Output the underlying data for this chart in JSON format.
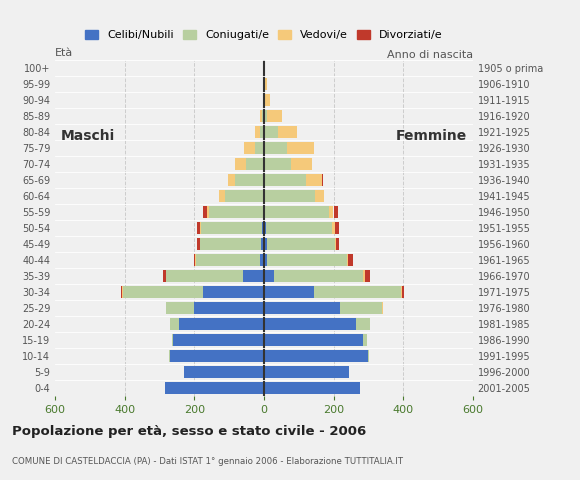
{
  "age_groups": [
    "0-4",
    "5-9",
    "10-14",
    "15-19",
    "20-24",
    "25-29",
    "30-34",
    "35-39",
    "40-44",
    "45-49",
    "50-54",
    "55-59",
    "60-64",
    "65-69",
    "70-74",
    "75-79",
    "80-84",
    "85-89",
    "90-94",
    "95-99",
    "100+"
  ],
  "birth_years": [
    "2001-2005",
    "1996-2000",
    "1991-1995",
    "1986-1990",
    "1981-1985",
    "1976-1980",
    "1971-1975",
    "1966-1970",
    "1961-1965",
    "1956-1960",
    "1951-1955",
    "1946-1950",
    "1941-1945",
    "1936-1940",
    "1931-1935",
    "1926-1930",
    "1921-1925",
    "1916-1920",
    "1911-1915",
    "1906-1910",
    "1905 o prima"
  ],
  "males_celibe": [
    285,
    230,
    270,
    260,
    245,
    200,
    175,
    60,
    10,
    8,
    5,
    3,
    3,
    2,
    2,
    2,
    0,
    0,
    0,
    0,
    0
  ],
  "males_coniugato": [
    0,
    0,
    2,
    5,
    25,
    80,
    230,
    220,
    185,
    175,
    175,
    155,
    110,
    80,
    50,
    25,
    10,
    5,
    2,
    0,
    0
  ],
  "males_vedovo": [
    0,
    0,
    0,
    0,
    0,
    0,
    2,
    2,
    2,
    2,
    3,
    5,
    15,
    20,
    30,
    30,
    15,
    5,
    0,
    0,
    0
  ],
  "males_divorziato": [
    0,
    0,
    0,
    0,
    0,
    0,
    3,
    8,
    5,
    8,
    10,
    12,
    0,
    0,
    0,
    0,
    0,
    0,
    0,
    0,
    0
  ],
  "females_celibe": [
    275,
    245,
    300,
    285,
    265,
    220,
    145,
    30,
    8,
    8,
    5,
    3,
    3,
    2,
    2,
    0,
    0,
    0,
    0,
    0,
    0
  ],
  "females_coniugato": [
    0,
    0,
    2,
    10,
    40,
    120,
    250,
    255,
    230,
    195,
    190,
    185,
    145,
    120,
    75,
    65,
    40,
    8,
    2,
    0,
    0
  ],
  "females_vedovo": [
    0,
    0,
    0,
    0,
    0,
    2,
    3,
    5,
    5,
    5,
    10,
    12,
    25,
    45,
    60,
    80,
    55,
    45,
    15,
    8,
    0
  ],
  "females_divorziato": [
    0,
    0,
    0,
    0,
    0,
    0,
    5,
    15,
    12,
    8,
    12,
    12,
    0,
    2,
    0,
    0,
    0,
    0,
    0,
    0,
    0
  ],
  "color_celibe": "#4472c4",
  "color_coniugato": "#b8cfa0",
  "color_vedovo": "#f5c97a",
  "color_divorziato": "#c0392b",
  "xlim": 600,
  "bg_color": "#f0f0f0",
  "grid_color": "#cccccc",
  "title": "Popolazione per età, sesso e stato civile - 2006",
  "subtitle": "COMUNE DI CASTELDACCIA (PA) - Dati ISTAT 1° gennaio 2006 - Elaborazione TUTTITALIA.IT",
  "legend_labels": [
    "Celibi/Nubili",
    "Coniugati/e",
    "Vedovi/e",
    "Divorziati/e"
  ],
  "label_eta": "Età",
  "label_anno": "Anno di nascita",
  "label_maschi": "Maschi",
  "label_femmine": "Femmine"
}
